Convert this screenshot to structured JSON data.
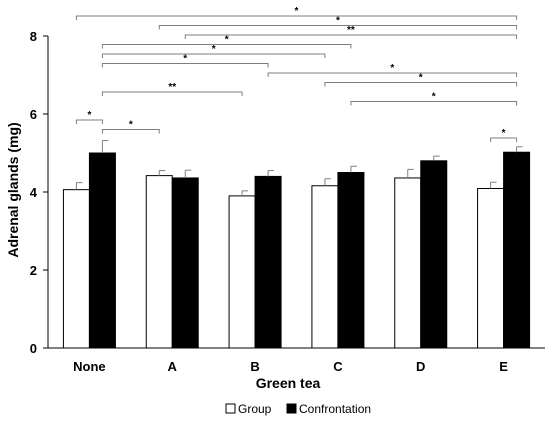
{
  "chart_data": {
    "type": "bar",
    "title": "",
    "xlabel": "Green tea",
    "ylabel": "Adrenal glands (mg)",
    "categories": [
      "None",
      "A",
      "B",
      "C",
      "D",
      "E"
    ],
    "ylim": [
      0,
      8
    ],
    "yticks": [
      0,
      2,
      4,
      6,
      8
    ],
    "grid": false,
    "legend_position": "bottom",
    "series": [
      {
        "name": "Group",
        "fill": "#ffffff",
        "values": [
          4.06,
          4.42,
          3.9,
          4.16,
          4.36,
          4.09
        ],
        "errors": [
          0.18,
          0.13,
          0.13,
          0.18,
          0.22,
          0.16
        ]
      },
      {
        "name": "Confrontation",
        "fill": "#000000",
        "values": [
          5.0,
          4.36,
          4.4,
          4.5,
          4.8,
          5.02
        ],
        "errors": [
          0.32,
          0.2,
          0.15,
          0.16,
          0.12,
          0.14
        ]
      }
    ],
    "significance": [
      {
        "from": [
          0,
          0
        ],
        "to": [
          5,
          1
        ],
        "label": "*"
      },
      {
        "from": [
          1,
          0
        ],
        "to": [
          5,
          1
        ],
        "label": "*"
      },
      {
        "from": [
          1,
          1
        ],
        "to": [
          5,
          1
        ],
        "label": "**"
      },
      {
        "from": [
          0,
          1
        ],
        "to": [
          3,
          1
        ],
        "label": "*"
      },
      {
        "from": [
          0,
          1
        ],
        "to": [
          3,
          0
        ],
        "label": "*"
      },
      {
        "from": [
          0,
          1
        ],
        "to": [
          2,
          1
        ],
        "label": "*"
      },
      {
        "from": [
          2,
          1
        ],
        "to": [
          5,
          1
        ],
        "label": "*"
      },
      {
        "from": [
          3,
          0
        ],
        "to": [
          5,
          1
        ],
        "label": "*"
      },
      {
        "from": [
          0,
          1
        ],
        "to": [
          2,
          0
        ],
        "label": "**"
      },
      {
        "from": [
          3,
          1
        ],
        "to": [
          5,
          1
        ],
        "label": "*"
      },
      {
        "from": [
          0,
          0
        ],
        "to": [
          0,
          1
        ],
        "label": "*"
      },
      {
        "from": [
          0,
          1
        ],
        "to": [
          1,
          0
        ],
        "label": "*"
      },
      {
        "from": [
          5,
          0
        ],
        "to": [
          5,
          1
        ],
        "label": "*"
      }
    ]
  }
}
